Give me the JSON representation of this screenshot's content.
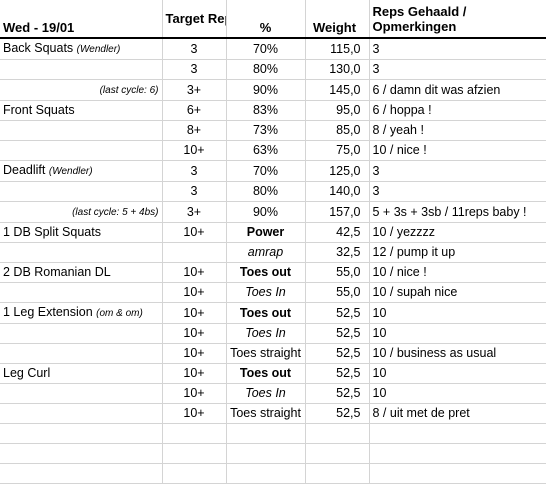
{
  "header": {
    "title": "Wed - 19/01",
    "reps_label": "Target Reps",
    "pct_label": "%",
    "weight_label": "Weight",
    "remarks_label": "Reps Gehaald / Opmerkingen"
  },
  "rows": [
    {
      "ex": "Back Squats",
      "ex_note": "(Wendler)",
      "reps": "3",
      "pct": "70%",
      "weight": "115,0",
      "remark": "3"
    },
    {
      "ex": "",
      "ex_note": "",
      "reps": "3",
      "pct": "80%",
      "weight": "130,0",
      "remark": "3"
    },
    {
      "ex": "",
      "ex_note": "(last cycle: 6)",
      "reps": "3+",
      "pct": "90%",
      "weight": "145,0",
      "remark": "6 / damn dit was afzien"
    },
    {
      "ex": "Front Squats",
      "ex_note": "",
      "reps": "6+",
      "pct": "83%",
      "weight": "95,0",
      "remark": "6 / hoppa !"
    },
    {
      "ex": "",
      "ex_note": "",
      "reps": "8+",
      "pct": "73%",
      "weight": "85,0",
      "remark": "8 / yeah !"
    },
    {
      "ex": "",
      "ex_note": "",
      "reps": "10+",
      "pct": "63%",
      "weight": "75,0",
      "remark": "10 / nice !"
    },
    {
      "ex": "Deadlift",
      "ex_note": "(Wendler)",
      "reps": "3",
      "pct": "70%",
      "weight": "125,0",
      "remark": "3"
    },
    {
      "ex": "",
      "ex_note": "",
      "reps": "3",
      "pct": "80%",
      "weight": "140,0",
      "remark": "3"
    },
    {
      "ex": "",
      "ex_note": "(last cycle: 5 + 4bs)",
      "reps": "3+",
      "pct": "90%",
      "weight": "157,0",
      "remark": "5 + 3s + 3sb / 11reps baby !"
    },
    {
      "ex": "1 DB Split Squats",
      "ex_note": "",
      "reps": "10+",
      "pct": "Power",
      "weight": "42,5",
      "remark": "10 / yezzzz"
    },
    {
      "ex": "",
      "ex_note": "",
      "reps": "",
      "pct": "amrap",
      "weight": "32,5",
      "remark": "12 / pump it up"
    },
    {
      "ex": "2 DB Romanian DL",
      "ex_note": "",
      "reps": "10+",
      "pct": "Toes out",
      "weight": "55,0",
      "remark": "10 / nice !"
    },
    {
      "ex": "",
      "ex_note": "",
      "reps": "10+",
      "pct": "Toes In",
      "weight": "55,0",
      "remark": "10 / supah nice"
    },
    {
      "ex": "1 Leg Extension",
      "ex_note": "(om & om)",
      "reps": "10+",
      "pct": "Toes out",
      "weight": "52,5",
      "remark": "10"
    },
    {
      "ex": "",
      "ex_note": "",
      "reps": "10+",
      "pct": "Toes In",
      "weight": "52,5",
      "remark": "10"
    },
    {
      "ex": "",
      "ex_note": "",
      "reps": "10+",
      "pct": "Toes straight",
      "weight": "52,5",
      "remark": "10 / business as usual"
    },
    {
      "ex": "Leg Curl",
      "ex_note": "",
      "reps": "10+",
      "pct": "Toes out",
      "weight": "52,5",
      "remark": "10"
    },
    {
      "ex": "",
      "ex_note": "",
      "reps": "10+",
      "pct": "Toes In",
      "weight": "52,5",
      "remark": "10"
    },
    {
      "ex": "",
      "ex_note": "",
      "reps": "10+",
      "pct": "Toes straight",
      "weight": "52,5",
      "remark": "8 / uit met de pret"
    },
    {
      "ex": "",
      "ex_note": "",
      "reps": "",
      "pct": "",
      "weight": "",
      "remark": ""
    },
    {
      "ex": "",
      "ex_note": "",
      "reps": "",
      "pct": "",
      "weight": "",
      "remark": ""
    },
    {
      "ex": "",
      "ex_note": "",
      "reps": "",
      "pct": "",
      "weight": "",
      "remark": ""
    }
  ]
}
